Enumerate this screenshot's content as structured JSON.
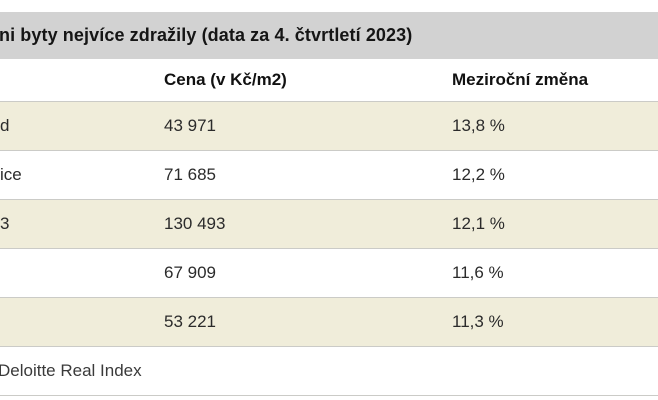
{
  "table": {
    "title": "ni byty nejvíce zdražily (data za 4. čtvrtletí 2023)",
    "columns": {
      "location": "",
      "price": "Cena (v Kč/m2)",
      "change": "Meziroční změna"
    },
    "rows": [
      {
        "location": "d",
        "price": "43 971",
        "change": "13,8 %"
      },
      {
        "location": "ice",
        "price": "71 685",
        "change": "12,2 %"
      },
      {
        "location": "3",
        "price": "130 493",
        "change": "12,1 %"
      },
      {
        "location": "",
        "price": "67 909",
        "change": "11,6 %"
      },
      {
        "location": "",
        "price": "53 221",
        "change": "11,3 %"
      }
    ],
    "source": "Deloitte Real Index"
  },
  "colors": {
    "title_bar_bg": "#d2d2d2",
    "row_alt_bg": "#f0edda",
    "border": "#cbcbc7",
    "text": "#2b2b2b"
  }
}
